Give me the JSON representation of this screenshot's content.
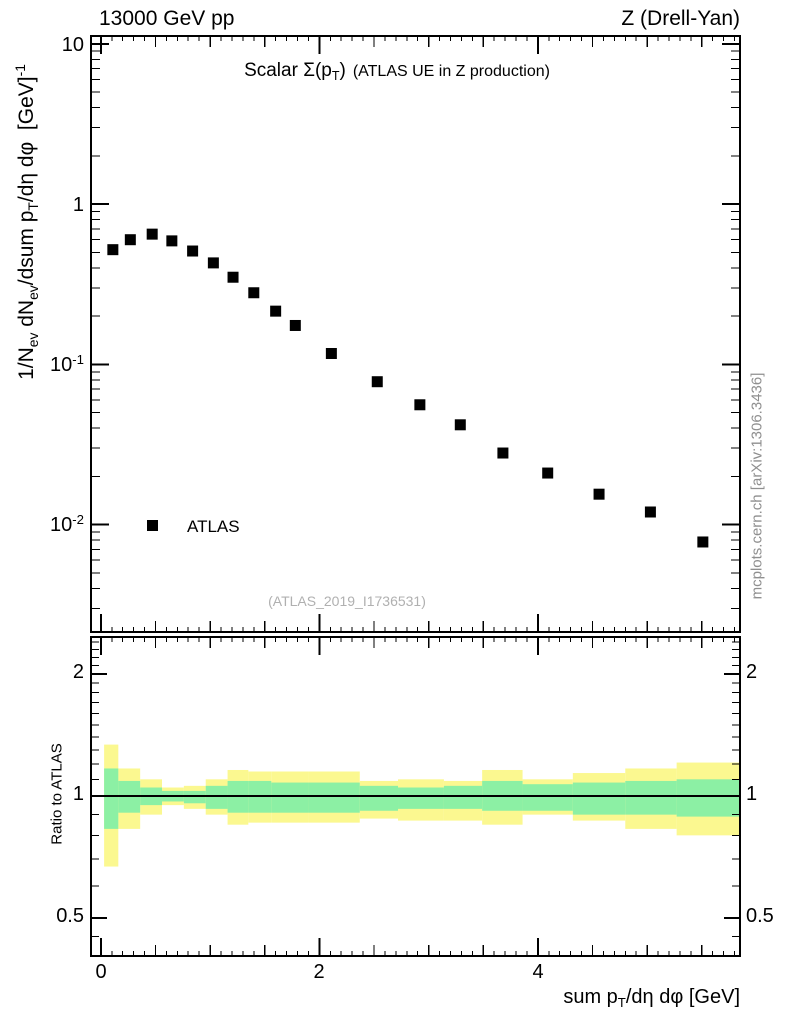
{
  "header": {
    "left": "13000 GeV pp",
    "right": "Z (Drell-Yan)"
  },
  "titles": {
    "plot_title_main": "Scalar Σ(p_(T))",
    "plot_title_note": "(ATLAS UE in Z production)",
    "x_axis": "sum p_(T)/dη dφ [GeV]",
    "y_axis_main": "1/N_(ev) dN_(ev)/dsum p_(T)/dη dφ  [GeV]^(-1)",
    "y_axis_ratio": "Ratio to ATLAS"
  },
  "annotations": {
    "watermark": "(ATLAS_2019_I1736531)",
    "side_note": "mcplots.cern.ch [arXiv:1306.3436]"
  },
  "legend": {
    "items": [
      {
        "label": "ATLAS",
        "marker": "filled-square",
        "color": "#000000"
      }
    ]
  },
  "colors": {
    "band_outer": "#FBF890",
    "band_inner": "#8CF0A4",
    "marker": "#000000",
    "frame": "#000000",
    "reference_line": "#000000"
  },
  "chart_data": {
    "type": "scatter",
    "title": "Scalar Σ(p_T) (ATLAS UE in Z production)",
    "xlabel": "sum p_T/dη dφ [GeV]",
    "ylabel": "1/N_ev dN_ev/dsum p_T/dη dφ [GeV]^-1",
    "ylabel_ratio": "Ratio to ATLAS",
    "xscale": "linear",
    "yscale": "log",
    "grid": false,
    "xlim": [
      -0.09,
      5.85
    ],
    "ylim_main": [
      0.00214,
      11.2
    ],
    "ylim_ratio": [
      0.403,
      2.47
    ],
    "x_ticks": [
      {
        "value": 0,
        "label": "0"
      },
      {
        "value": 2,
        "label": "2"
      },
      {
        "value": 4,
        "label": "4"
      }
    ],
    "x_medium_tick_step": 0.5,
    "x_minor_tick_step": 0.1,
    "y_ticks_main": [
      {
        "value": 10,
        "base": "10",
        "exp": ""
      },
      {
        "value": 1,
        "base": "1",
        "exp": ""
      },
      {
        "value": 0.1,
        "base": "10",
        "exp": "-1"
      },
      {
        "value": 0.01,
        "base": "10",
        "exp": "-2"
      }
    ],
    "y_ticks_ratio": [
      {
        "value": 2,
        "label": "2"
      },
      {
        "value": 1,
        "label": "1"
      },
      {
        "value": 0.5,
        "label": "0.5"
      }
    ],
    "ratio_minor_ticks": [
      2.4,
      2.3,
      2.2,
      2.1,
      1.9,
      1.8,
      1.7,
      1.6,
      1.5,
      1.4,
      1.3,
      1.2,
      1.1,
      0.9,
      0.8,
      0.7,
      0.6,
      0.45
    ],
    "ratio_reference": 1,
    "legend_position": "left-middle",
    "series": [
      {
        "name": "ATLAS",
        "marker": "square",
        "color": "#000000",
        "x": [
          0.11,
          0.27,
          0.47,
          0.65,
          0.84,
          1.03,
          1.21,
          1.4,
          1.6,
          1.78,
          2.11,
          2.53,
          2.92,
          3.29,
          3.68,
          4.09,
          4.56,
          5.03,
          5.51
        ],
        "y": [
          0.52,
          0.6,
          0.65,
          0.59,
          0.51,
          0.43,
          0.35,
          0.28,
          0.215,
          0.175,
          0.117,
          0.078,
          0.056,
          0.042,
          0.028,
          0.021,
          0.0155,
          0.012,
          0.0078
        ]
      }
    ],
    "ratio_bands": [
      {
        "x": [
          0.03,
          0.16
        ],
        "outer": [
          0.67,
          1.34
        ],
        "inner": [
          0.83,
          1.17
        ]
      },
      {
        "x": [
          0.16,
          0.36
        ],
        "outer": [
          0.83,
          1.17
        ],
        "inner": [
          0.91,
          1.09
        ]
      },
      {
        "x": [
          0.36,
          0.56
        ],
        "outer": [
          0.9,
          1.1
        ],
        "inner": [
          0.95,
          1.05
        ]
      },
      {
        "x": [
          0.56,
          0.76
        ],
        "outer": [
          0.95,
          1.05
        ],
        "inner": [
          0.97,
          1.03
        ]
      },
      {
        "x": [
          0.76,
          0.96
        ],
        "outer": [
          0.93,
          1.06
        ],
        "inner": [
          0.96,
          1.03
        ]
      },
      {
        "x": [
          0.96,
          1.16
        ],
        "outer": [
          0.9,
          1.1
        ],
        "inner": [
          0.93,
          1.06
        ]
      },
      {
        "x": [
          1.16,
          1.35
        ],
        "outer": [
          0.85,
          1.16
        ],
        "inner": [
          0.91,
          1.09
        ]
      },
      {
        "x": [
          1.35,
          1.56
        ],
        "outer": [
          0.86,
          1.15
        ],
        "inner": [
          0.91,
          1.09
        ]
      },
      {
        "x": [
          1.56,
          1.9
        ],
        "outer": [
          0.86,
          1.15
        ],
        "inner": [
          0.91,
          1.08
        ]
      },
      {
        "x": [
          1.9,
          2.37
        ],
        "outer": [
          0.86,
          1.15
        ],
        "inner": [
          0.91,
          1.08
        ]
      },
      {
        "x": [
          2.37,
          2.72
        ],
        "outer": [
          0.88,
          1.09
        ],
        "inner": [
          0.92,
          1.06
        ]
      },
      {
        "x": [
          2.72,
          3.14
        ],
        "outer": [
          0.87,
          1.1
        ],
        "inner": [
          0.93,
          1.05
        ]
      },
      {
        "x": [
          3.14,
          3.49
        ],
        "outer": [
          0.87,
          1.09
        ],
        "inner": [
          0.93,
          1.06
        ]
      },
      {
        "x": [
          3.49,
          3.86
        ],
        "outer": [
          0.85,
          1.16
        ],
        "inner": [
          0.92,
          1.09
        ]
      },
      {
        "x": [
          3.86,
          4.32
        ],
        "outer": [
          0.9,
          1.1
        ],
        "inner": [
          0.92,
          1.07
        ]
      },
      {
        "x": [
          4.32,
          4.8
        ],
        "outer": [
          0.87,
          1.14
        ],
        "inner": [
          0.9,
          1.08
        ]
      },
      {
        "x": [
          4.8,
          5.27
        ],
        "outer": [
          0.83,
          1.17
        ],
        "inner": [
          0.9,
          1.09
        ]
      },
      {
        "x": [
          5.27,
          5.85
        ],
        "outer": [
          0.8,
          1.21
        ],
        "inner": [
          0.89,
          1.1
        ]
      }
    ]
  }
}
